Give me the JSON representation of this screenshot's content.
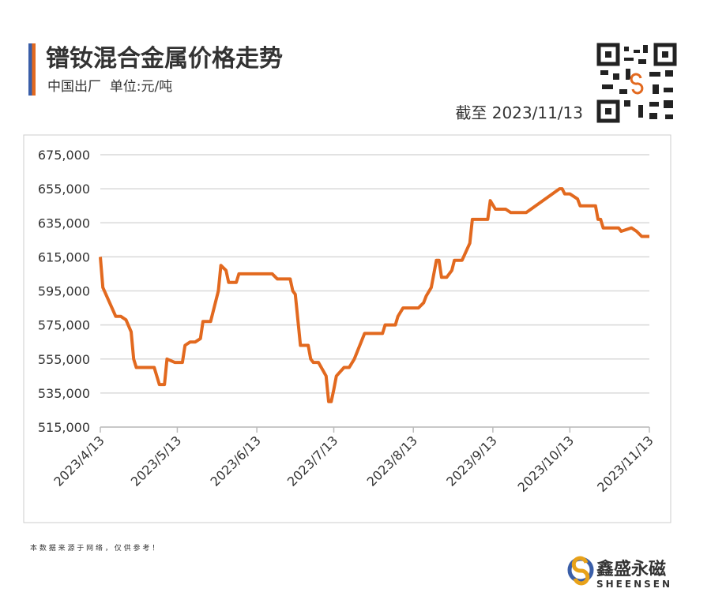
{
  "header": {
    "title": "镨钕混合金属价格走势",
    "subtitle": "中国出厂  单位:元/吨",
    "asof": "截至 2023/11/13"
  },
  "footer": {
    "source": "本 数 据 来 源 于 网 络 ， 仅 供 参 考 ！",
    "brand": "鑫盛永磁",
    "brand_en": "SHEENSEN"
  },
  "chart_data": {
    "type": "line",
    "color": "#e2691f",
    "grid": true,
    "x": [
      "2023/4/13",
      "2023/4/14",
      "2023/4/19",
      "2023/4/21",
      "2023/4/23",
      "2023/4/25",
      "2023/4/26",
      "2023/4/27",
      "2023/5/4",
      "2023/5/6",
      "2023/5/8",
      "2023/5/9",
      "2023/5/12",
      "2023/5/15",
      "2023/5/16",
      "2023/5/18",
      "2023/5/20",
      "2023/5/22",
      "2023/5/23",
      "2023/5/26",
      "2023/5/29",
      "2023/5/30",
      "2023/6/1",
      "2023/6/2",
      "2023/6/5",
      "2023/6/6",
      "2023/6/19",
      "2023/6/21",
      "2023/6/26",
      "2023/6/27",
      "2023/6/28",
      "2023/6/30",
      "2023/7/3",
      "2023/7/4",
      "2023/7/5",
      "2023/7/7",
      "2023/7/10",
      "2023/7/11",
      "2023/7/12",
      "2023/7/13",
      "2023/7/14",
      "2023/7/17",
      "2023/7/19",
      "2023/7/21",
      "2023/7/25",
      "2023/8/1",
      "2023/8/2",
      "2023/8/6",
      "2023/8/7",
      "2023/8/9",
      "2023/8/15",
      "2023/8/17",
      "2023/8/18",
      "2023/8/20",
      "2023/8/22",
      "2023/8/23",
      "2023/8/24",
      "2023/8/26",
      "2023/8/28",
      "2023/8/29",
      "2023/9/1",
      "2023/9/4",
      "2023/9/5",
      "2023/9/11",
      "2023/9/12",
      "2023/9/14",
      "2023/9/18",
      "2023/9/20",
      "2023/9/26",
      "2023/10/9",
      "2023/10/10",
      "2023/10/11",
      "2023/10/13",
      "2023/10/16",
      "2023/10/17",
      "2023/10/23",
      "2023/10/24",
      "2023/10/25",
      "2023/10/26",
      "2023/11/1",
      "2023/11/2",
      "2023/11/6",
      "2023/11/8",
      "2023/11/10",
      "2023/11/13"
    ],
    "values": [
      615000,
      597000,
      580000,
      580000,
      578000,
      571000,
      555000,
      550000,
      550000,
      540000,
      540000,
      555000,
      553000,
      553000,
      563000,
      565000,
      565000,
      567000,
      577000,
      577000,
      595000,
      610000,
      607000,
      600000,
      600000,
      605000,
      605000,
      602000,
      602000,
      595000,
      593000,
      563000,
      563000,
      555000,
      553000,
      553000,
      545000,
      530000,
      530000,
      537000,
      545000,
      550000,
      550000,
      555000,
      570000,
      570000,
      575000,
      575000,
      580000,
      585000,
      585000,
      588000,
      592000,
      597000,
      613000,
      613000,
      603000,
      603000,
      607000,
      613000,
      613000,
      623000,
      637000,
      637000,
      648000,
      643000,
      643000,
      641000,
      641000,
      655000,
      655000,
      652000,
      652000,
      649000,
      645000,
      645000,
      637000,
      637000,
      632000,
      632000,
      630000,
      632000,
      630000,
      627000,
      627000
    ],
    "xlim": [
      "2023/4/13",
      "2023/11/13"
    ],
    "xticks": [
      "2023/4/13",
      "2023/5/13",
      "2023/6/13",
      "2023/7/13",
      "2023/8/13",
      "2023/9/13",
      "2023/10/13",
      "2023/11/13"
    ],
    "ylim": [
      515000,
      675000
    ],
    "yticks": [
      {
        "value": 515000,
        "label": "515,000"
      },
      {
        "value": 535000,
        "label": "535,000"
      },
      {
        "value": 555000,
        "label": "555,000"
      },
      {
        "value": 575000,
        "label": "575,000"
      },
      {
        "value": 595000,
        "label": "595,000"
      },
      {
        "value": 615000,
        "label": "615,000"
      },
      {
        "value": 635000,
        "label": "635,000"
      },
      {
        "value": 655000,
        "label": "655,000"
      },
      {
        "value": 675000,
        "label": "675,000"
      }
    ]
  }
}
